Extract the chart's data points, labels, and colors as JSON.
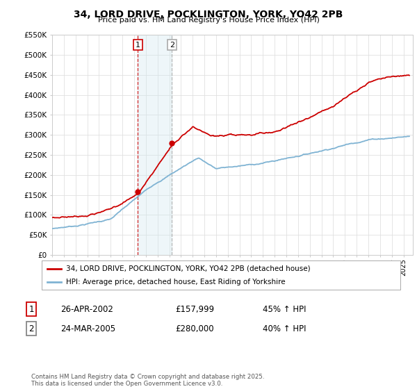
{
  "title": "34, LORD DRIVE, POCKLINGTON, YORK, YO42 2PB",
  "subtitle": "Price paid vs. HM Land Registry's House Price Index (HPI)",
  "ylim": [
    0,
    550000
  ],
  "yticks": [
    0,
    50000,
    100000,
    150000,
    200000,
    250000,
    300000,
    350000,
    400000,
    450000,
    500000,
    550000
  ],
  "ytick_labels": [
    "£0",
    "£50K",
    "£100K",
    "£150K",
    "£200K",
    "£250K",
    "£300K",
    "£350K",
    "£400K",
    "£450K",
    "£500K",
    "£550K"
  ],
  "xlim_start": 1995.0,
  "xlim_end": 2025.8,
  "transaction1_date": 2002.32,
  "transaction1_price": 157999,
  "transaction2_date": 2005.23,
  "transaction2_price": 280000,
  "red_line_color": "#cc0000",
  "blue_line_color": "#7fb3d3",
  "vline1_color": "#cc0000",
  "vline2_color": "#aaaaaa",
  "shade_color": "#d0e8f0",
  "background_color": "#ffffff",
  "grid_color": "#e0e0e0",
  "legend_label_red": "34, LORD DRIVE, POCKLINGTON, YORK, YO42 2PB (detached house)",
  "legend_label_blue": "HPI: Average price, detached house, East Riding of Yorkshire",
  "footer": "Contains HM Land Registry data © Crown copyright and database right 2025.\nThis data is licensed under the Open Government Licence v3.0.",
  "table_rows": [
    {
      "num": "1",
      "date": "26-APR-2002",
      "price": "£157,999",
      "change": "45% ↑ HPI",
      "num_color": "#cc0000"
    },
    {
      "num": "2",
      "date": "24-MAR-2005",
      "price": "£280,000",
      "change": "40% ↑ HPI",
      "num_color": "#888888"
    }
  ]
}
